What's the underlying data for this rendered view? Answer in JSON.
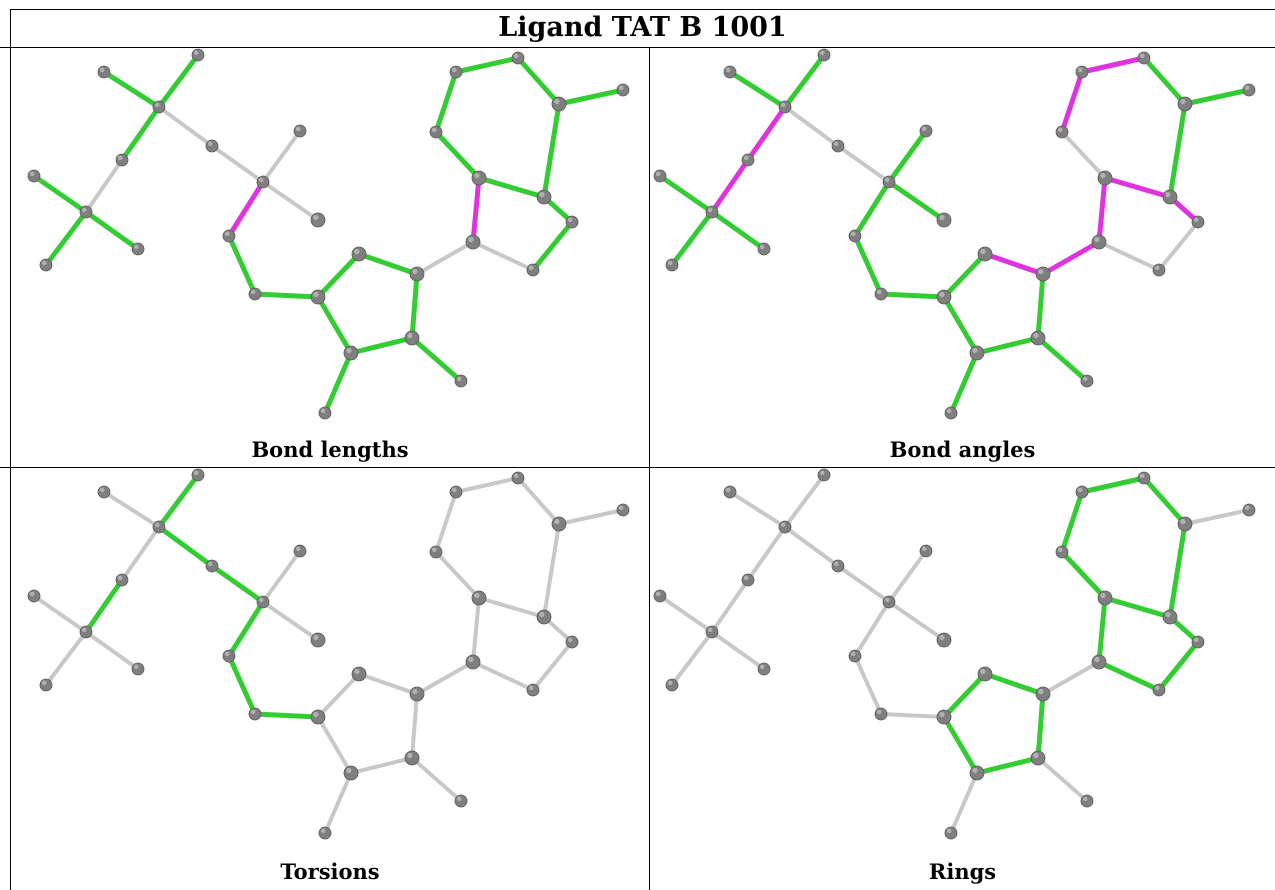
{
  "title": "Ligand TAT B 1001",
  "panels": [
    {
      "id": "bond-lengths",
      "caption": "Bond lengths",
      "highlight": "set1"
    },
    {
      "id": "bond-angles",
      "caption": "Bond angles",
      "highlight": "set2"
    },
    {
      "id": "torsions",
      "caption": "Torsions",
      "highlight": "set3"
    },
    {
      "id": "rings",
      "caption": "Rings",
      "highlight": "set4"
    }
  ],
  "colors": {
    "atom": "#7f7f7f",
    "atom_highlight": "#b0b0b0",
    "bond_default": "#c8c8c8",
    "bond_green": "#33cc33",
    "bond_magenta": "#e033e0"
  }
}
